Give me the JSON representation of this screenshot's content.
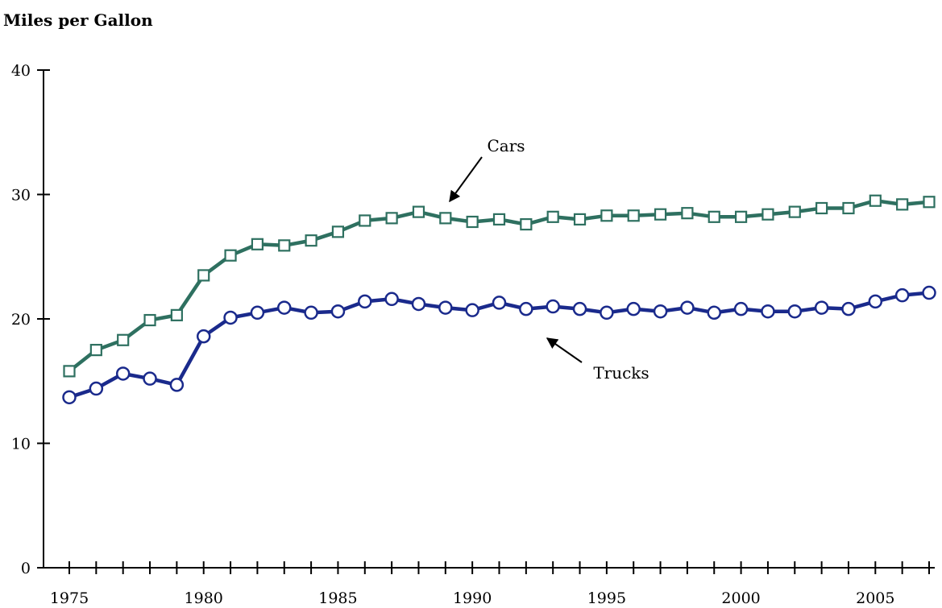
{
  "chart_data": {
    "type": "line",
    "title": "",
    "ylabel": "Miles per Gallon",
    "xlabel": "",
    "xlim": [
      1975,
      2007
    ],
    "ylim": [
      0,
      40
    ],
    "y_ticks": [
      0,
      10,
      20,
      30,
      40
    ],
    "x_tick_labels": [
      1975,
      1980,
      1985,
      1990,
      1995,
      2000,
      2005
    ],
    "x": [
      1975,
      1976,
      1977,
      1978,
      1979,
      1980,
      1981,
      1982,
      1983,
      1984,
      1985,
      1986,
      1987,
      1988,
      1989,
      1990,
      1991,
      1992,
      1993,
      1994,
      1995,
      1996,
      1997,
      1998,
      1999,
      2000,
      2001,
      2002,
      2003,
      2004,
      2005,
      2006,
      2007
    ],
    "grid": false,
    "legend": "none",
    "series": [
      {
        "name": "Cars",
        "color": "#2e7060",
        "marker": "square",
        "values": [
          15.8,
          17.5,
          18.3,
          19.9,
          20.3,
          23.5,
          25.1,
          26.0,
          25.9,
          26.3,
          27.0,
          27.9,
          28.1,
          28.6,
          28.1,
          27.8,
          28.0,
          27.6,
          28.2,
          28.0,
          28.3,
          28.3,
          28.4,
          28.5,
          28.2,
          28.2,
          28.4,
          28.6,
          28.9,
          28.9,
          29.5,
          29.2,
          29.4
        ]
      },
      {
        "name": "Trucks",
        "color": "#1a2a8c",
        "marker": "circle",
        "values": [
          13.7,
          14.4,
          15.6,
          15.2,
          14.7,
          18.6,
          20.1,
          20.5,
          20.9,
          20.5,
          20.6,
          21.4,
          21.6,
          21.2,
          20.9,
          20.7,
          21.3,
          20.8,
          21.0,
          20.8,
          20.5,
          20.8,
          20.6,
          20.9,
          20.5,
          20.8,
          20.6,
          20.6,
          20.9,
          20.8,
          21.4,
          21.9,
          22.1
        ]
      }
    ],
    "annotations": [
      {
        "text": "Cars",
        "series": "Cars"
      },
      {
        "text": "Trucks",
        "series": "Trucks"
      }
    ]
  }
}
